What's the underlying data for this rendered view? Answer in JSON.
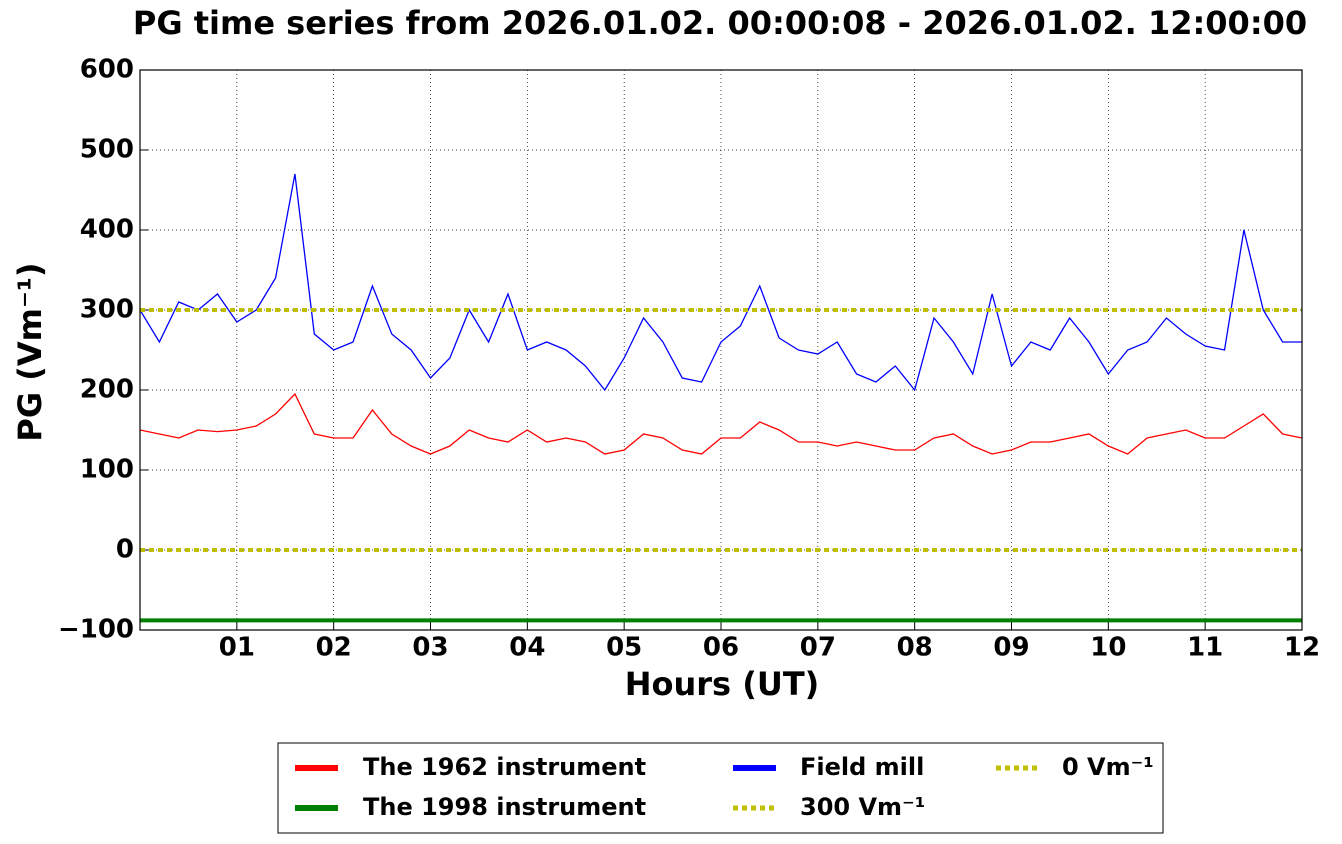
{
  "chart_data": {
    "type": "line",
    "title": "PG time series from 2026.01.02. 00:00:08 - 2026.01.02. 12:00:00",
    "xlabel": "Hours (UT)",
    "ylabel": "PG (Vm⁻¹)",
    "x": [
      0,
      0.2,
      0.4,
      0.6,
      0.8,
      1,
      1.2,
      1.4,
      1.6,
      1.8,
      2,
      2.2,
      2.4,
      2.6,
      2.8,
      3,
      3.2,
      3.4,
      3.6,
      3.8,
      4,
      4.2,
      4.4,
      4.6,
      4.8,
      5,
      5.2,
      5.4,
      5.6,
      5.8,
      6,
      6.2,
      6.4,
      6.6,
      6.8,
      7,
      7.2,
      7.4,
      7.6,
      7.8,
      8,
      8.2,
      8.4,
      8.6,
      8.8,
      9,
      9.2,
      9.4,
      9.6,
      9.8,
      10,
      10.2,
      10.4,
      10.6,
      10.8,
      11,
      11.2,
      11.4,
      11.6,
      11.8,
      12
    ],
    "series": [
      {
        "name": "The 1962 instrument",
        "color": "#ff0000",
        "style": "solid",
        "width": 1.3,
        "values": [
          150,
          145,
          140,
          150,
          148,
          150,
          155,
          170,
          195,
          145,
          140,
          140,
          175,
          145,
          130,
          120,
          130,
          150,
          140,
          135,
          150,
          135,
          140,
          135,
          120,
          125,
          145,
          140,
          125,
          120,
          140,
          140,
          160,
          150,
          135,
          135,
          130,
          135,
          130,
          125,
          125,
          140,
          145,
          130,
          120,
          125,
          135,
          135,
          140,
          145,
          130,
          120,
          140,
          145,
          150,
          140,
          140,
          155,
          170,
          145,
          140
        ]
      },
      {
        "name": "The 1998 instrument",
        "color": "#008000",
        "style": "solid",
        "width": 4,
        "values": [
          -88,
          -88,
          -88,
          -88,
          -88,
          -88,
          -88,
          -88,
          -88,
          -88,
          -88,
          -88,
          -88,
          -88,
          -88,
          -88,
          -88,
          -88,
          -88,
          -88,
          -88,
          -88,
          -88,
          -88,
          -88,
          -88,
          -88,
          -88,
          -88,
          -88,
          -88,
          -88,
          -88,
          -88,
          -88,
          -88,
          -88,
          -88,
          -88,
          -88,
          -88,
          -88,
          -88,
          -88,
          -88,
          -88,
          -88,
          -88,
          -88,
          -88,
          -88,
          -88,
          -88,
          -88,
          -88,
          -88,
          -88,
          -88,
          -88,
          -88,
          -88
        ]
      },
      {
        "name": "Field mill",
        "color": "#0000ff",
        "style": "solid",
        "width": 1.3,
        "values": [
          300,
          260,
          310,
          300,
          320,
          285,
          300,
          340,
          470,
          270,
          250,
          260,
          330,
          270,
          250,
          215,
          240,
          300,
          260,
          320,
          250,
          260,
          250,
          230,
          200,
          240,
          290,
          260,
          215,
          210,
          260,
          280,
          330,
          265,
          250,
          245,
          260,
          220,
          210,
          230,
          200,
          290,
          260,
          220,
          320,
          230,
          260,
          250,
          290,
          260,
          220,
          250,
          260,
          290,
          270,
          255,
          250,
          400,
          300,
          260,
          260
        ]
      },
      {
        "name": "300 Vm⁻¹",
        "color": "#bfbf00",
        "style": "dotted",
        "width": 4,
        "values": [
          300,
          300,
          300,
          300,
          300,
          300,
          300,
          300,
          300,
          300,
          300,
          300,
          300,
          300,
          300,
          300,
          300,
          300,
          300,
          300,
          300,
          300,
          300,
          300,
          300,
          300,
          300,
          300,
          300,
          300,
          300,
          300,
          300,
          300,
          300,
          300,
          300,
          300,
          300,
          300,
          300,
          300,
          300,
          300,
          300,
          300,
          300,
          300,
          300,
          300,
          300,
          300,
          300,
          300,
          300,
          300,
          300,
          300,
          300,
          300,
          300
        ]
      },
      {
        "name": "0 Vm⁻¹",
        "color": "#bfbf00",
        "style": "dotted",
        "width": 4,
        "values": [
          0,
          0,
          0,
          0,
          0,
          0,
          0,
          0,
          0,
          0,
          0,
          0,
          0,
          0,
          0,
          0,
          0,
          0,
          0,
          0,
          0,
          0,
          0,
          0,
          0,
          0,
          0,
          0,
          0,
          0,
          0,
          0,
          0,
          0,
          0,
          0,
          0,
          0,
          0,
          0,
          0,
          0,
          0,
          0,
          0,
          0,
          0,
          0,
          0,
          0,
          0,
          0,
          0,
          0,
          0,
          0,
          0,
          0,
          0,
          0,
          0
        ]
      }
    ],
    "xlim": [
      0,
      12
    ],
    "xticks": [
      {
        "value": 1,
        "label": "01"
      },
      {
        "value": 2,
        "label": "02"
      },
      {
        "value": 3,
        "label": "03"
      },
      {
        "value": 4,
        "label": "04"
      },
      {
        "value": 5,
        "label": "05"
      },
      {
        "value": 6,
        "label": "06"
      },
      {
        "value": 7,
        "label": "07"
      },
      {
        "value": 8,
        "label": "08"
      },
      {
        "value": 9,
        "label": "09"
      },
      10,
      11,
      12
    ],
    "ylim": [
      -100,
      600
    ],
    "yticks": [
      {
        "value": -100,
        "label": "−100"
      },
      0,
      100,
      200,
      300,
      400,
      500,
      600
    ],
    "grid": true,
    "legend": "below"
  }
}
